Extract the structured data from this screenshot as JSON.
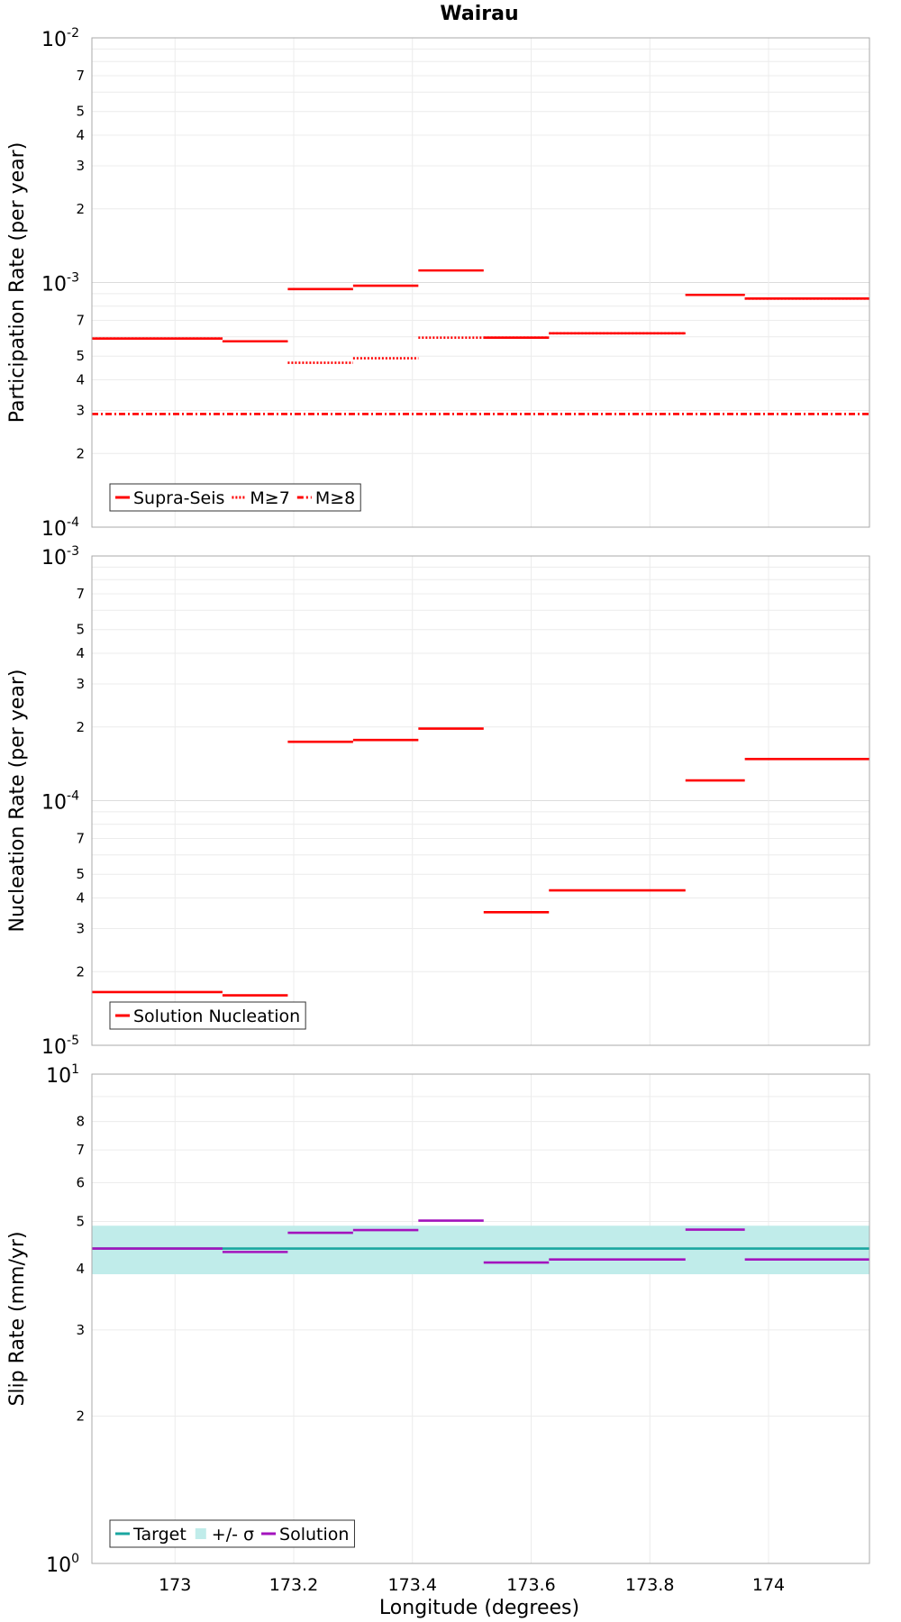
{
  "title": "Wairau",
  "xlabel": "Longitude (degrees)",
  "chart_data": [
    {
      "type": "line",
      "scale": "log",
      "ylabel": "Participation Rate (per year)",
      "ylim": [
        0.0001,
        0.01
      ],
      "xlim": [
        172.86,
        174.17
      ],
      "x_ticks": [
        "173",
        "173.2",
        "173.4",
        "173.6",
        "173.8",
        "174"
      ],
      "y_decades": [
        {
          "base": "10",
          "exp": "-4"
        },
        {
          "base": "10",
          "exp": "-3"
        },
        {
          "base": "10",
          "exp": "-2"
        }
      ],
      "legend": [
        "Supra-Seis",
        "M≥7",
        "M≥8"
      ],
      "legend_position": "bottom-left",
      "series": [
        {
          "name": "Supra-Seis",
          "style": "solid",
          "color": "#ff0000",
          "segments": [
            [
              172.86,
              173.08,
              0.00059
            ],
            [
              173.08,
              173.19,
              0.000575
            ],
            [
              173.19,
              173.3,
              0.00094
            ],
            [
              173.3,
              173.41,
              0.00097
            ],
            [
              173.41,
              173.52,
              0.00112
            ],
            [
              173.52,
              173.63,
              0.000595
            ],
            [
              173.63,
              173.86,
              0.00062
            ],
            [
              173.86,
              173.96,
              0.00089
            ],
            [
              173.96,
              174.17,
              0.00086
            ]
          ]
        },
        {
          "name": "M≥7",
          "style": "dotted",
          "color": "#ff0000",
          "segments": [
            [
              172.86,
              173.08,
              0.00059
            ],
            [
              173.08,
              173.19,
              0.000575
            ],
            [
              173.19,
              173.3,
              0.00047
            ],
            [
              173.3,
              173.41,
              0.00049
            ],
            [
              173.41,
              173.52,
              0.000595
            ],
            [
              173.52,
              173.63,
              0.000595
            ],
            [
              173.63,
              173.86,
              0.00062
            ],
            [
              173.86,
              173.96,
              0.00089
            ],
            [
              173.96,
              174.17,
              0.00086
            ]
          ]
        },
        {
          "name": "M≥8",
          "style": "dashdot",
          "color": "#ff0000",
          "segments": [
            [
              172.86,
              174.17,
              0.00029
            ]
          ]
        }
      ]
    },
    {
      "type": "line",
      "scale": "log",
      "ylabel": "Nucleation Rate (per year)",
      "ylim": [
        1e-05,
        0.001
      ],
      "xlim": [
        172.86,
        174.17
      ],
      "x_ticks": [
        "173",
        "173.2",
        "173.4",
        "173.6",
        "173.8",
        "174"
      ],
      "y_decades": [
        {
          "base": "10",
          "exp": "-5"
        },
        {
          "base": "10",
          "exp": "-4"
        },
        {
          "base": "10",
          "exp": "-3"
        }
      ],
      "legend": [
        "Solution Nucleation"
      ],
      "legend_position": "bottom-left",
      "series": [
        {
          "name": "Solution Nucleation",
          "style": "solid",
          "color": "#ff0000",
          "segments": [
            [
              172.86,
              173.08,
              1.65e-05
            ],
            [
              173.08,
              173.19,
              1.6e-05
            ],
            [
              173.19,
              173.3,
              0.000174
            ],
            [
              173.3,
              173.41,
              0.000177
            ],
            [
              173.41,
              173.52,
              0.000197
            ],
            [
              173.52,
              173.63,
              3.5e-05
            ],
            [
              173.63,
              173.86,
              4.3e-05
            ],
            [
              173.86,
              173.96,
              0.000121
            ],
            [
              173.96,
              174.17,
              0.000148
            ]
          ]
        }
      ]
    },
    {
      "type": "line",
      "scale": "log",
      "ylabel": "Slip Rate (mm/yr)",
      "ylim": [
        1,
        10
      ],
      "xlim": [
        172.86,
        174.17
      ],
      "x_ticks": [
        "173",
        "173.2",
        "173.4",
        "173.6",
        "173.8",
        "174"
      ],
      "y_decades": [
        {
          "base": "10",
          "exp": "0"
        },
        {
          "base": "10",
          "exp": "1"
        }
      ],
      "legend": [
        "Target",
        "+/- σ",
        "Solution"
      ],
      "legend_position": "bottom-left",
      "band": {
        "name": "+/- σ",
        "low": 3.9,
        "high": 4.9,
        "color": "#c0ecea"
      },
      "series": [
        {
          "name": "Target",
          "style": "solid",
          "color": "#1aa6a0",
          "segments": [
            [
              172.86,
              174.17,
              4.4
            ]
          ]
        },
        {
          "name": "Solution",
          "style": "solid",
          "color": "#a313bd",
          "segments": [
            [
              172.86,
              173.08,
              4.4
            ],
            [
              173.08,
              173.19,
              4.33
            ],
            [
              173.19,
              173.3,
              4.74
            ],
            [
              173.3,
              173.41,
              4.8
            ],
            [
              173.41,
              173.52,
              5.02
            ],
            [
              173.52,
              173.63,
              4.12
            ],
            [
              173.63,
              173.86,
              4.18
            ],
            [
              173.86,
              173.96,
              4.81
            ],
            [
              173.96,
              174.17,
              4.18
            ]
          ]
        }
      ]
    }
  ]
}
